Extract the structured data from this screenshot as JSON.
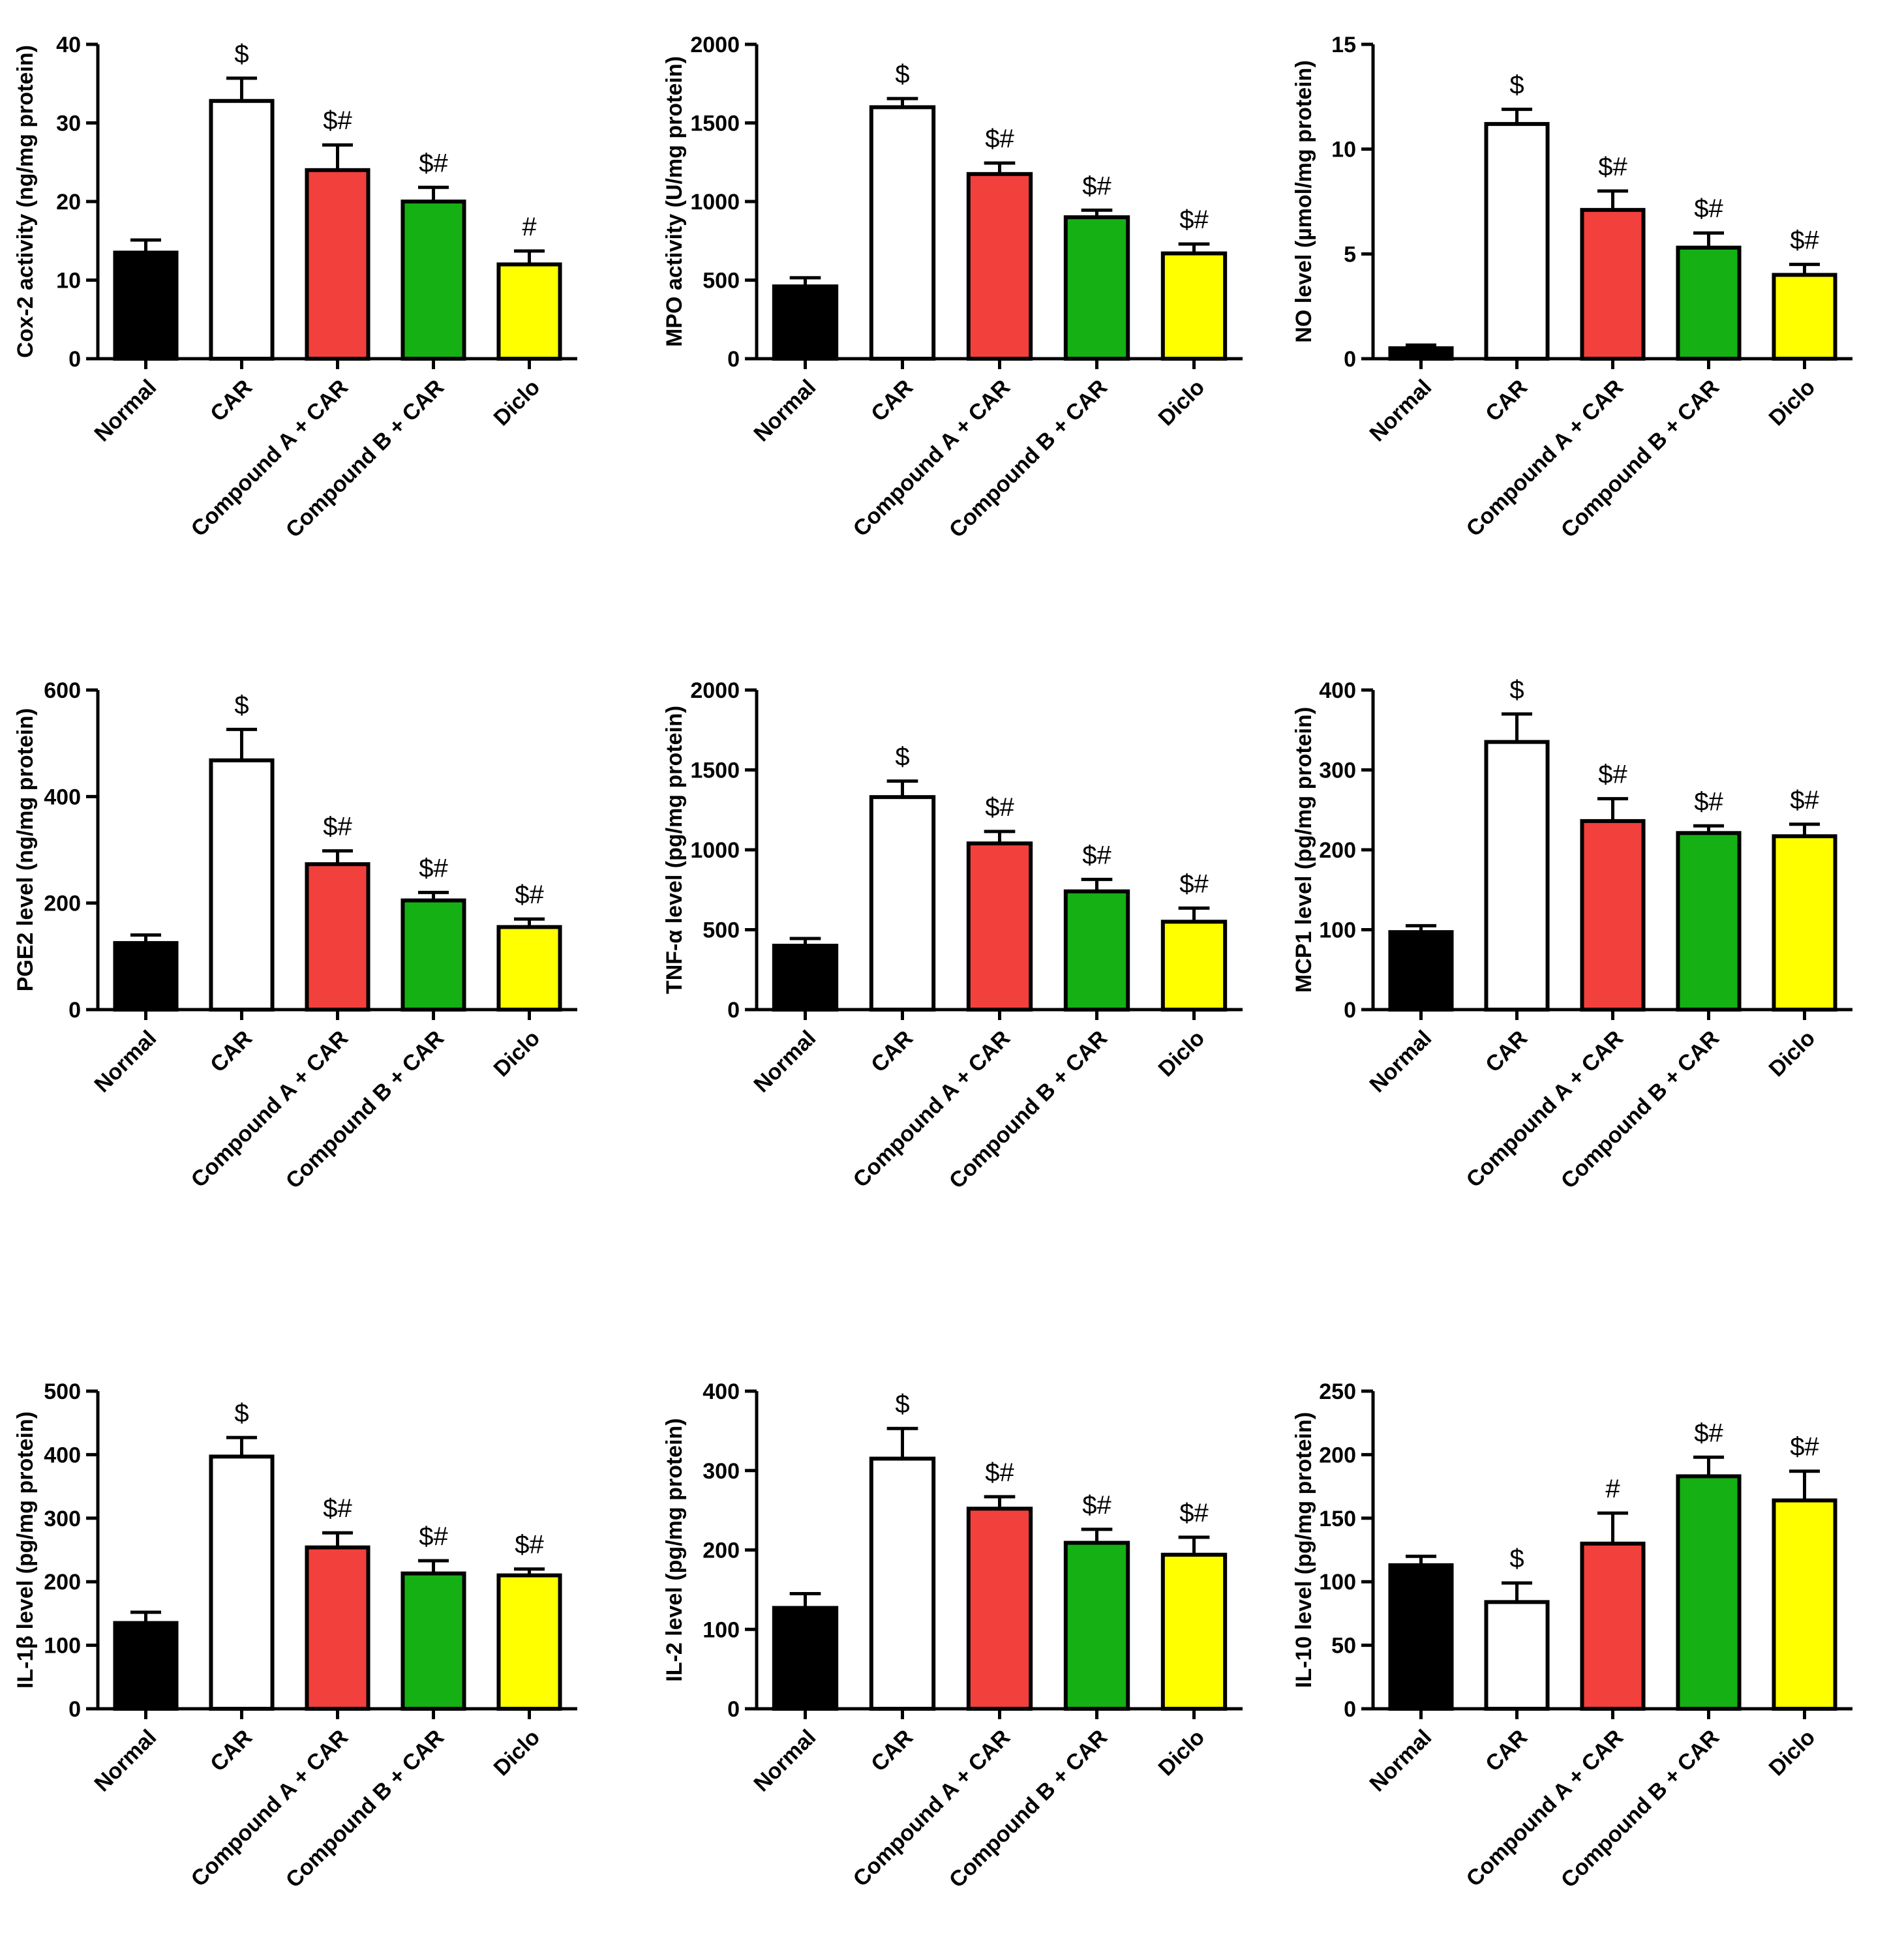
{
  "figure": {
    "background": "#ffffff"
  },
  "styles": {
    "bar_colors": [
      "#000000",
      "#ffffff",
      "#f2403c",
      "#14b014",
      "#ffff00"
    ]
  },
  "chart_data": [
    {
      "id": "cox2",
      "type": "bar",
      "ylabel": "Cox-2 activity (ng/mg protein)",
      "categories": [
        "Normal",
        "CAR",
        "Compound A + CAR",
        "Compound B + CAR",
        "Diclo"
      ],
      "values": [
        13.5,
        32.8,
        24.0,
        20.0,
        12.0
      ],
      "errors": [
        1.6,
        2.9,
        3.2,
        1.8,
        1.7
      ],
      "annotations": [
        "",
        "$",
        "$#",
        "$#",
        "#"
      ],
      "ylim": [
        0,
        40
      ],
      "yticks": [
        0,
        10,
        20,
        30,
        40
      ],
      "xlabel": "",
      "grid": false
    },
    {
      "id": "mpo",
      "type": "bar",
      "ylabel": "MPO activity (U/mg protein)",
      "categories": [
        "Normal",
        "CAR",
        "Compound A + CAR",
        "Compound B + CAR",
        "Diclo"
      ],
      "values": [
        460,
        1600,
        1175,
        900,
        670
      ],
      "errors": [
        55,
        55,
        70,
        45,
        60
      ],
      "annotations": [
        "",
        "$",
        "$#",
        "$#",
        "$#"
      ],
      "ylim": [
        0,
        2000
      ],
      "yticks": [
        0,
        500,
        1000,
        1500,
        2000
      ],
      "xlabel": "",
      "grid": false
    },
    {
      "id": "no",
      "type": "bar",
      "ylabel": "NO level (µmol/mg protein)",
      "categories": [
        "Normal",
        "CAR",
        "Compound A + CAR",
        "Compound B + CAR",
        "Diclo"
      ],
      "values": [
        0.5,
        11.2,
        7.1,
        5.3,
        4.0
      ],
      "errors": [
        0.15,
        0.7,
        0.9,
        0.7,
        0.5
      ],
      "annotations": [
        "",
        "$",
        "$#",
        "$#",
        "$#"
      ],
      "ylim": [
        0,
        15
      ],
      "yticks": [
        0,
        5,
        10,
        15
      ],
      "xlabel": "",
      "grid": false
    },
    {
      "id": "pge2",
      "type": "bar",
      "ylabel": "PGE2 level (ng/mg protein)",
      "categories": [
        "Normal",
        "CAR",
        "Compound A + CAR",
        "Compound B + CAR",
        "Diclo"
      ],
      "values": [
        125,
        468,
        273,
        205,
        155
      ],
      "errors": [
        15,
        58,
        25,
        15,
        15
      ],
      "annotations": [
        "",
        "$",
        "$#",
        "$#",
        "$#"
      ],
      "ylim": [
        0,
        600
      ],
      "yticks": [
        0,
        200,
        400,
        600
      ],
      "xlabel": "",
      "grid": false
    },
    {
      "id": "tnfa",
      "type": "bar",
      "ylabel": "TNF-α level (pg/mg protein)",
      "categories": [
        "Normal",
        "CAR",
        "Compound A + CAR",
        "Compound B + CAR",
        "Diclo"
      ],
      "values": [
        400,
        1330,
        1040,
        740,
        550
      ],
      "errors": [
        45,
        100,
        75,
        75,
        85
      ],
      "annotations": [
        "",
        "$",
        "$#",
        "$#",
        "$#"
      ],
      "ylim": [
        0,
        2000
      ],
      "yticks": [
        0,
        500,
        1000,
        1500,
        2000
      ],
      "xlabel": "",
      "grid": false
    },
    {
      "id": "mcp1",
      "type": "bar",
      "ylabel": "MCP1 level (pg/mg protein)",
      "categories": [
        "Normal",
        "CAR",
        "Compound A + CAR",
        "Compound B + CAR",
        "Diclo"
      ],
      "values": [
        97,
        335,
        236,
        221,
        217
      ],
      "errors": [
        8,
        35,
        28,
        9,
        15
      ],
      "annotations": [
        "",
        "$",
        "$#",
        "$#",
        "$#"
      ],
      "ylim": [
        0,
        400
      ],
      "yticks": [
        0,
        100,
        200,
        300,
        400
      ],
      "xlabel": "",
      "grid": false
    },
    {
      "id": "il1b",
      "type": "bar",
      "ylabel": "IL-1β level (pg/mg protein)",
      "categories": [
        "Normal",
        "CAR",
        "Compound A + CAR",
        "Compound B + CAR",
        "Diclo"
      ],
      "values": [
        135,
        397,
        254,
        213,
        210
      ],
      "errors": [
        17,
        30,
        23,
        20,
        10
      ],
      "annotations": [
        "",
        "$",
        "$#",
        "$#",
        "$#"
      ],
      "ylim": [
        0,
        500
      ],
      "yticks": [
        0,
        100,
        200,
        300,
        400,
        500
      ],
      "xlabel": "",
      "grid": false
    },
    {
      "id": "il2",
      "type": "bar",
      "ylabel": "IL-2 level (pg/mg protein)",
      "categories": [
        "Normal",
        "CAR",
        "Compound A + CAR",
        "Compound B + CAR",
        "Diclo"
      ],
      "values": [
        127,
        315,
        252,
        209,
        194
      ],
      "errors": [
        18,
        38,
        15,
        17,
        22
      ],
      "annotations": [
        "",
        "$",
        "$#",
        "$#",
        "$#"
      ],
      "ylim": [
        0,
        400
      ],
      "yticks": [
        0,
        100,
        200,
        300,
        400
      ],
      "xlabel": "",
      "grid": false
    },
    {
      "id": "il10",
      "type": "bar",
      "ylabel": "IL-10 level (pg/mg protein)",
      "categories": [
        "Normal",
        "CAR",
        "Compound A + CAR",
        "Compound B + CAR",
        "Diclo"
      ],
      "values": [
        113,
        84,
        130,
        183,
        164
      ],
      "errors": [
        7,
        15,
        24,
        15,
        23
      ],
      "annotations": [
        "",
        "$",
        "#",
        "$#",
        "$#"
      ],
      "ylim": [
        0,
        250
      ],
      "yticks": [
        0,
        50,
        100,
        150,
        200,
        250
      ],
      "xlabel": "",
      "grid": false
    }
  ]
}
